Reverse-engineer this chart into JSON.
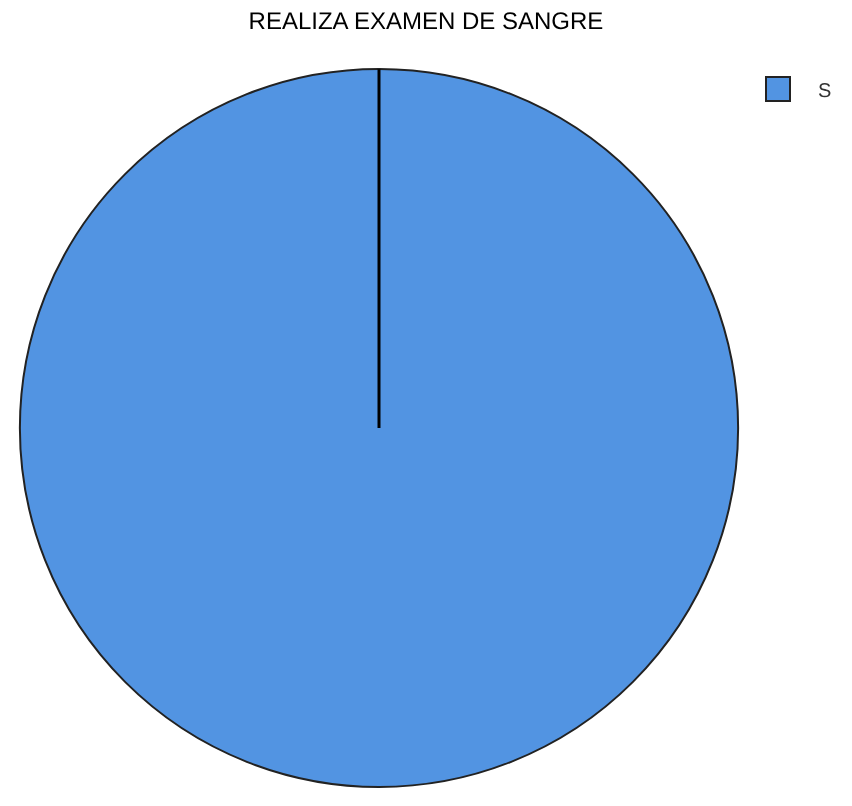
{
  "chart_data": {
    "type": "pie",
    "title": "REALIZA EXAMEN DE SANGRE",
    "categories": [
      "S"
    ],
    "values": [
      100
    ],
    "colors": [
      "#5294e2"
    ],
    "legend": "top right",
    "needle": "S"
  }
}
